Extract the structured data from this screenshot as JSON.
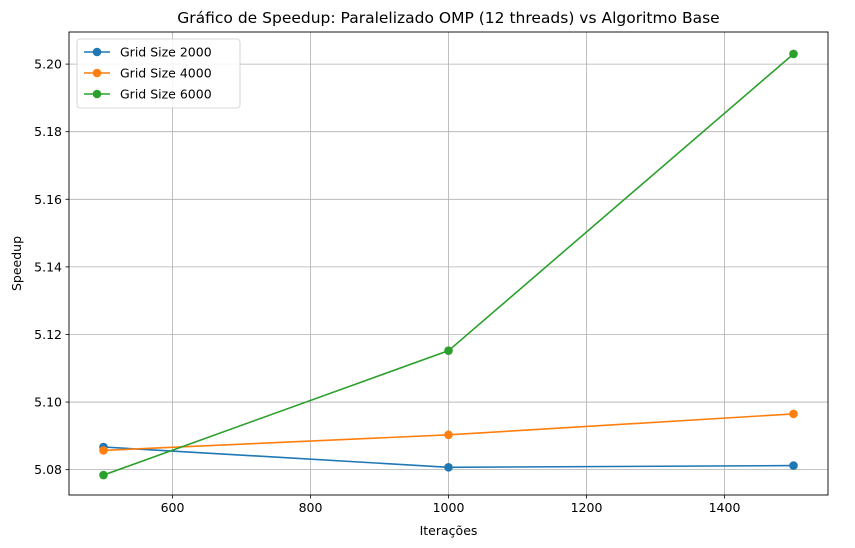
{
  "chart_data": {
    "type": "line",
    "title": "Gráfico de Speedup: Paralelizado OMP (12 threads) vs Algoritmo Base",
    "xlabel": "Iterações",
    "ylabel": "Speedup",
    "x": [
      500,
      1000,
      1500
    ],
    "series": [
      {
        "name": "Grid Size 2000",
        "values": [
          5.0867,
          5.0807,
          5.0812
        ],
        "color": "#1f77b4"
      },
      {
        "name": "Grid Size 4000",
        "values": [
          5.0857,
          5.0903,
          5.0965
        ],
        "color": "#ff7f0e"
      },
      {
        "name": "Grid Size 6000",
        "values": [
          5.0784,
          5.1152,
          5.203
        ],
        "color": "#2ca02c"
      }
    ],
    "xlim": [
      450,
      1550
    ],
    "ylim": [
      5.0725,
      5.2095
    ],
    "xticks": [
      600,
      800,
      1000,
      1200,
      1400
    ],
    "xtick_labels": [
      "600",
      "800",
      "1000",
      "1200",
      "1400"
    ],
    "yticks": [
      5.08,
      5.1,
      5.12,
      5.14,
      5.16,
      5.18,
      5.2
    ],
    "ytick_labels": [
      "5.08",
      "5.10",
      "5.12",
      "5.14",
      "5.16",
      "5.18",
      "5.20"
    ],
    "grid": true,
    "legend_position": "top-left",
    "marker": "circle"
  }
}
